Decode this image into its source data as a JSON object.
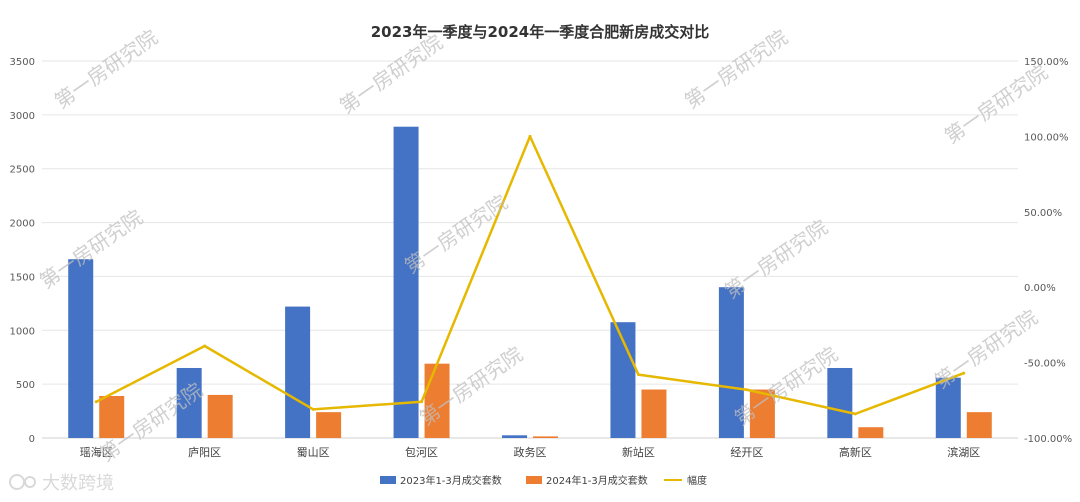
{
  "chart_data": {
    "type": "bar",
    "title": "2023年一季度与2024年一季度合肥新房成交对比",
    "categories": [
      "瑶海区",
      "庐阳区",
      "蜀山区",
      "包河区",
      "政务区",
      "新站区",
      "经开区",
      "高新区",
      "滨湖区"
    ],
    "series": [
      {
        "name": "2023年1-3月成交套数",
        "type": "bar",
        "axis": "left",
        "color": "#4472C4",
        "values": [
          1660,
          650,
          1220,
          2890,
          25,
          1075,
          1400,
          650,
          560
        ]
      },
      {
        "name": "2024年1-3月成交套数",
        "type": "bar",
        "axis": "left",
        "color": "#ED7D31",
        "values": [
          390,
          400,
          240,
          690,
          15,
          450,
          450,
          100,
          240
        ]
      },
      {
        "name": "幅度",
        "type": "line",
        "axis": "right",
        "color": "#E6B800",
        "values": [
          -76,
          -39,
          -81,
          -76,
          100,
          -58,
          -68,
          -84,
          -57
        ]
      }
    ],
    "y_left": {
      "min": 0,
      "max": 3500,
      "ticks": [
        "0",
        "500",
        "1000",
        "1500",
        "2000",
        "2500",
        "3000",
        "3500"
      ]
    },
    "y_right": {
      "min": -100,
      "max": 150,
      "unit": "%",
      "ticks": [
        "-100.00%",
        "-50.00%",
        "0.00%",
        "50.00%",
        "100.00%",
        "150.00%"
      ]
    },
    "grid": true,
    "legend_position": "bottom"
  },
  "watermark": {
    "text": "第一房研究院"
  },
  "brand": {
    "text": "大数跨境"
  }
}
